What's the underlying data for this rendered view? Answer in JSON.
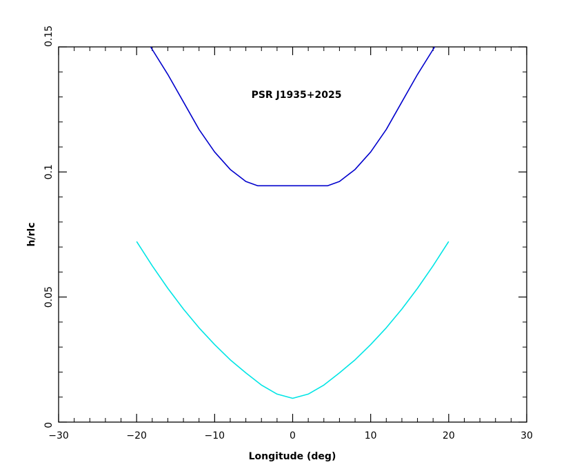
{
  "chart_data": {
    "type": "line",
    "title": "",
    "annotation": "PSR J1935+2025",
    "xlabel": "Longitude (deg)",
    "ylabel": "h/rlc",
    "xlim": [
      -30,
      30
    ],
    "ylim": [
      0,
      0.15
    ],
    "x_ticks": [
      -30,
      -20,
      -10,
      0,
      10,
      20,
      30
    ],
    "x_tick_labels": [
      "−30",
      "−20",
      "−10",
      "0",
      "10",
      "20",
      "30"
    ],
    "y_ticks": [
      0,
      0.05,
      0.1,
      0.15
    ],
    "y_tick_labels": [
      "0",
      "0.05",
      "0.1",
      "0.15"
    ],
    "grid": false,
    "series": [
      {
        "color": "#0000cc",
        "x": [
          -18.2,
          -16,
          -14,
          -12,
          -10,
          -8,
          -6,
          -4.5,
          -2,
          0,
          2,
          4.5,
          6,
          8,
          10,
          12,
          14,
          16,
          18.2
        ],
        "y": [
          0.15,
          0.139,
          0.128,
          0.117,
          0.108,
          0.101,
          0.0962,
          0.0945,
          0.0945,
          0.0945,
          0.0945,
          0.0945,
          0.0962,
          0.101,
          0.108,
          0.117,
          0.128,
          0.139,
          0.15
        ]
      },
      {
        "color": "#00e5e5",
        "x": [
          -20,
          -18,
          -16,
          -14,
          -12,
          -10,
          -8,
          -6,
          -4,
          -2,
          0,
          2,
          4,
          6,
          8,
          10,
          12,
          14,
          16,
          18,
          20
        ],
        "y": [
          0.0722,
          0.0625,
          0.0535,
          0.0452,
          0.0377,
          0.031,
          0.0249,
          0.0197,
          0.0148,
          0.0112,
          0.0095,
          0.0112,
          0.0148,
          0.0197,
          0.0249,
          0.031,
          0.0377,
          0.0452,
          0.0535,
          0.0625,
          0.0722
        ]
      }
    ]
  }
}
